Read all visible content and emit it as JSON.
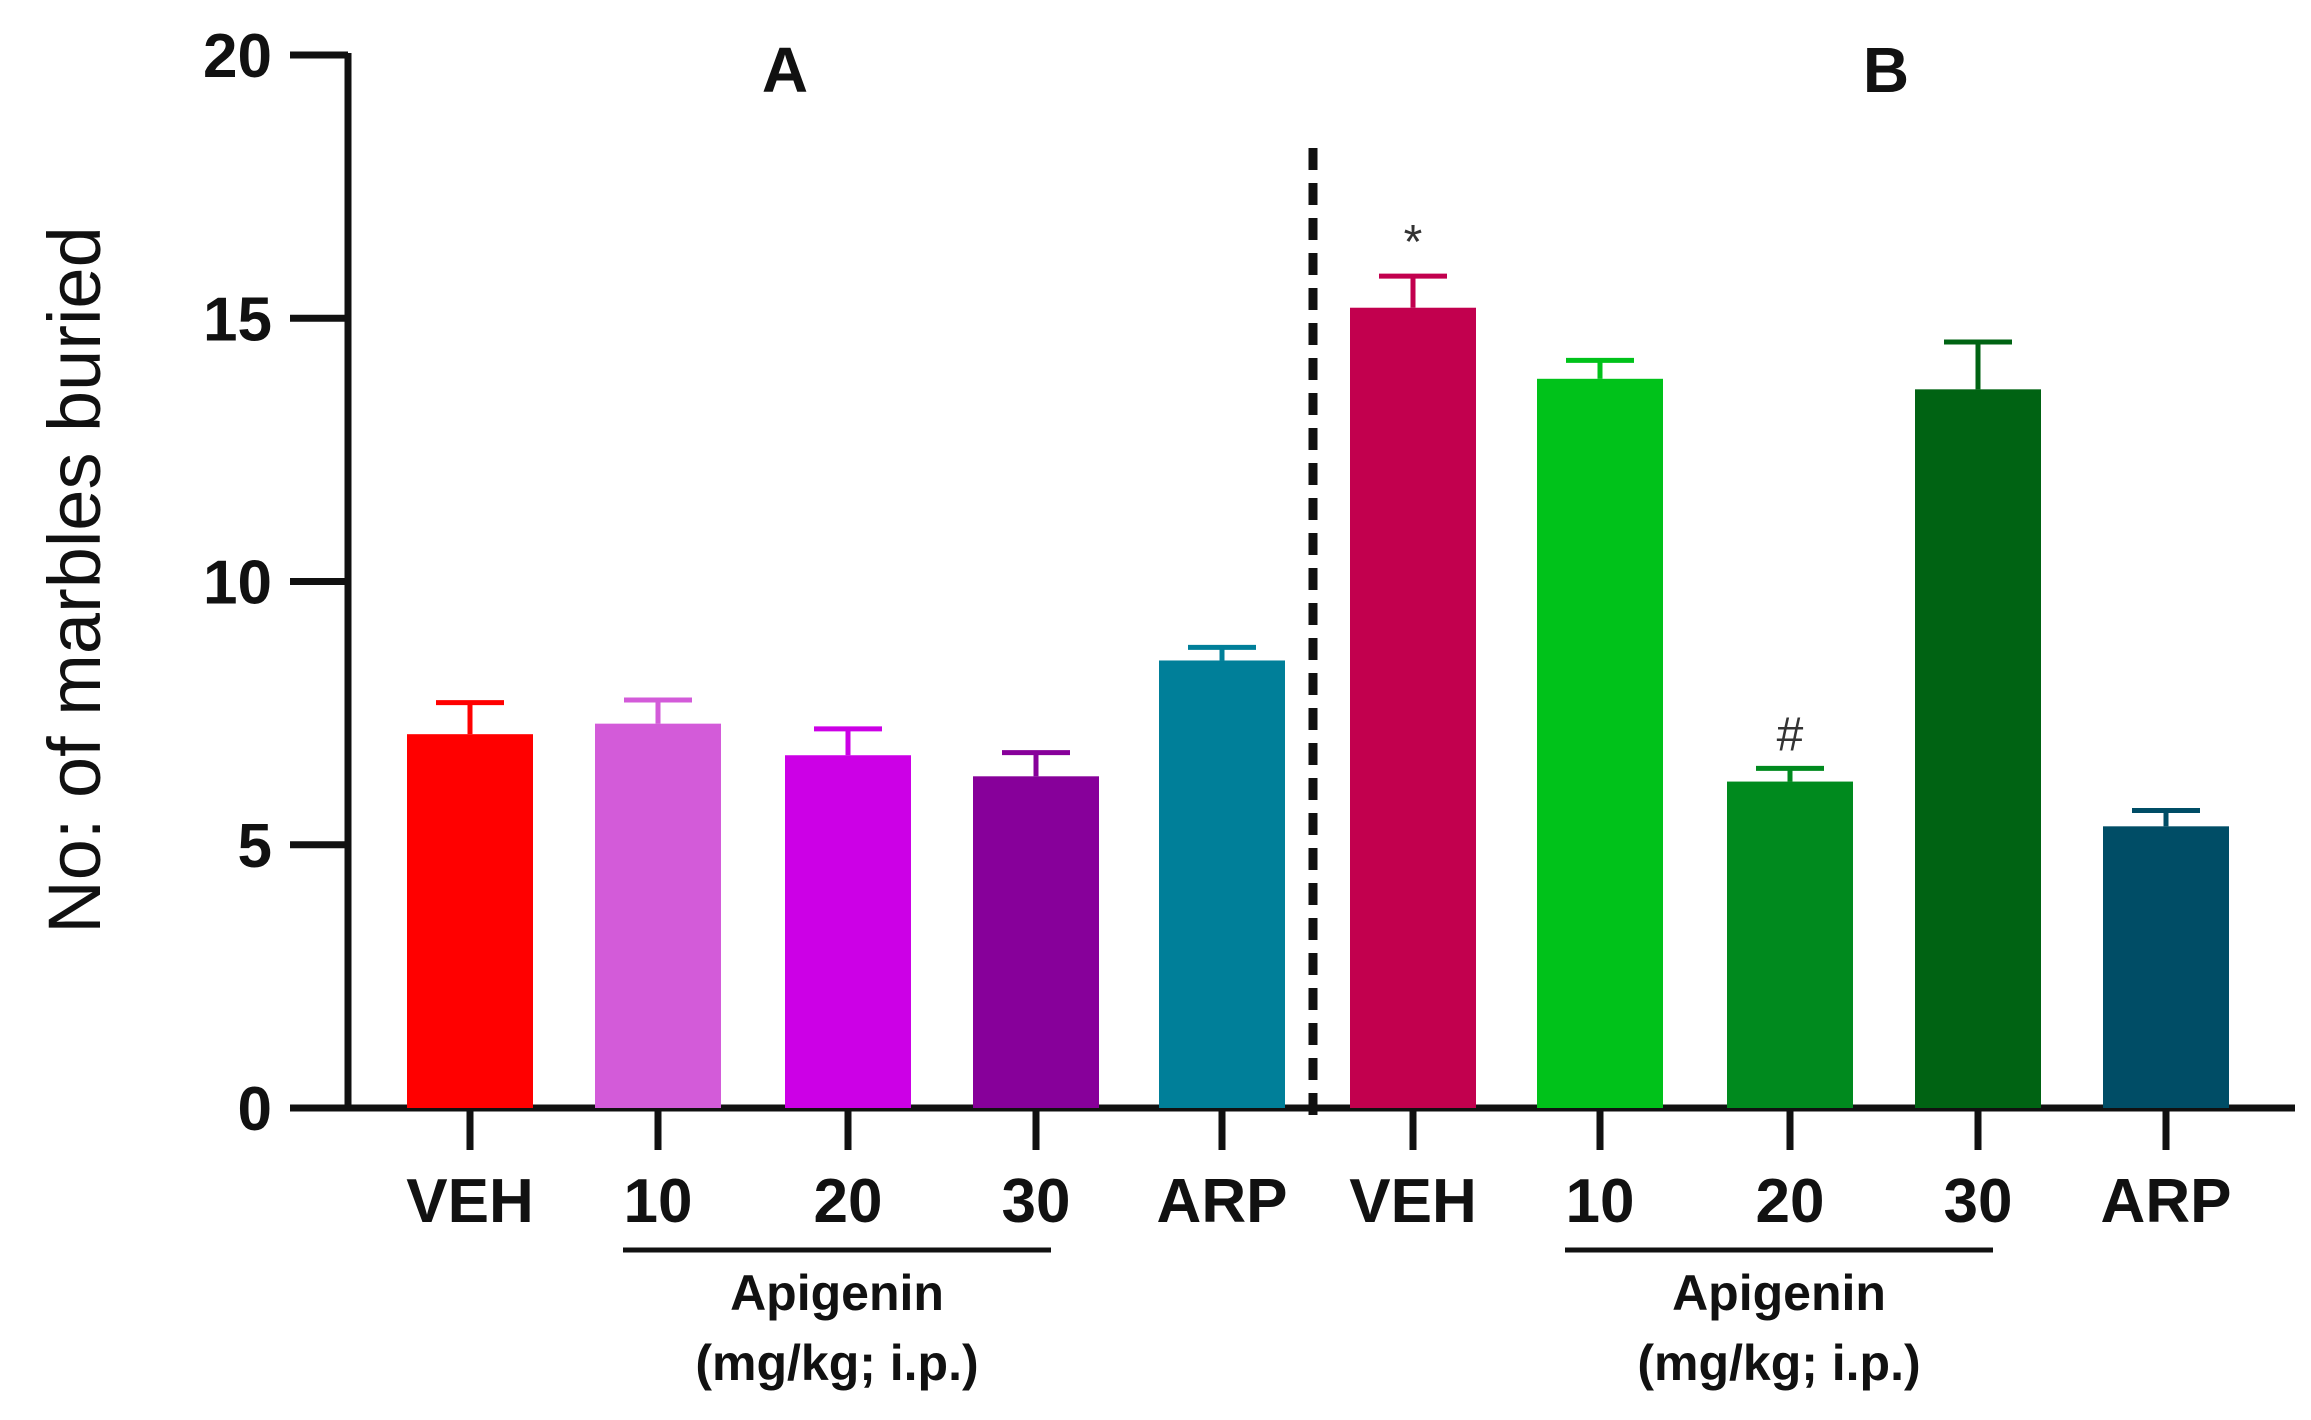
{
  "chart_data": {
    "type": "bar",
    "title": "",
    "xlabel": "",
    "ylabel": "No: of marbles buried",
    "ylim": [
      0,
      20
    ],
    "yticks": [
      0,
      5,
      10,
      15,
      20
    ],
    "grid": false,
    "panels": [
      {
        "label": "A",
        "categories": [
          "VEH",
          "10",
          "20",
          "30",
          "ARP"
        ],
        "values": [
          7.1,
          7.3,
          6.7,
          6.3,
          8.5
        ],
        "errors": [
          0.6,
          0.45,
          0.5,
          0.45,
          0.25
        ],
        "colors": [
          "#ff0000",
          "#d35bd9",
          "#cc00e6",
          "#87009a",
          "#007f99"
        ],
        "annotations": [
          "",
          "",
          "",
          "",
          ""
        ],
        "group": {
          "label": "Apigenin",
          "sublabel": "(mg/kg; i.p.)",
          "spans": [
            "10",
            "30"
          ]
        }
      },
      {
        "label": "B",
        "categories": [
          "VEH",
          "10",
          "20",
          "30",
          "ARP"
        ],
        "values": [
          15.2,
          13.85,
          6.2,
          13.65,
          5.35
        ],
        "errors": [
          0.6,
          0.35,
          0.25,
          0.9,
          0.3
        ],
        "colors": [
          "#c2004e",
          "#00c21a",
          "#008a1e",
          "#006313",
          "#004d66"
        ],
        "annotations": [
          "*",
          "",
          "#",
          "",
          ""
        ],
        "group": {
          "label": "Apigenin",
          "sublabel": "(mg/kg; i.p.)",
          "spans": [
            "10",
            "30"
          ]
        }
      }
    ]
  }
}
